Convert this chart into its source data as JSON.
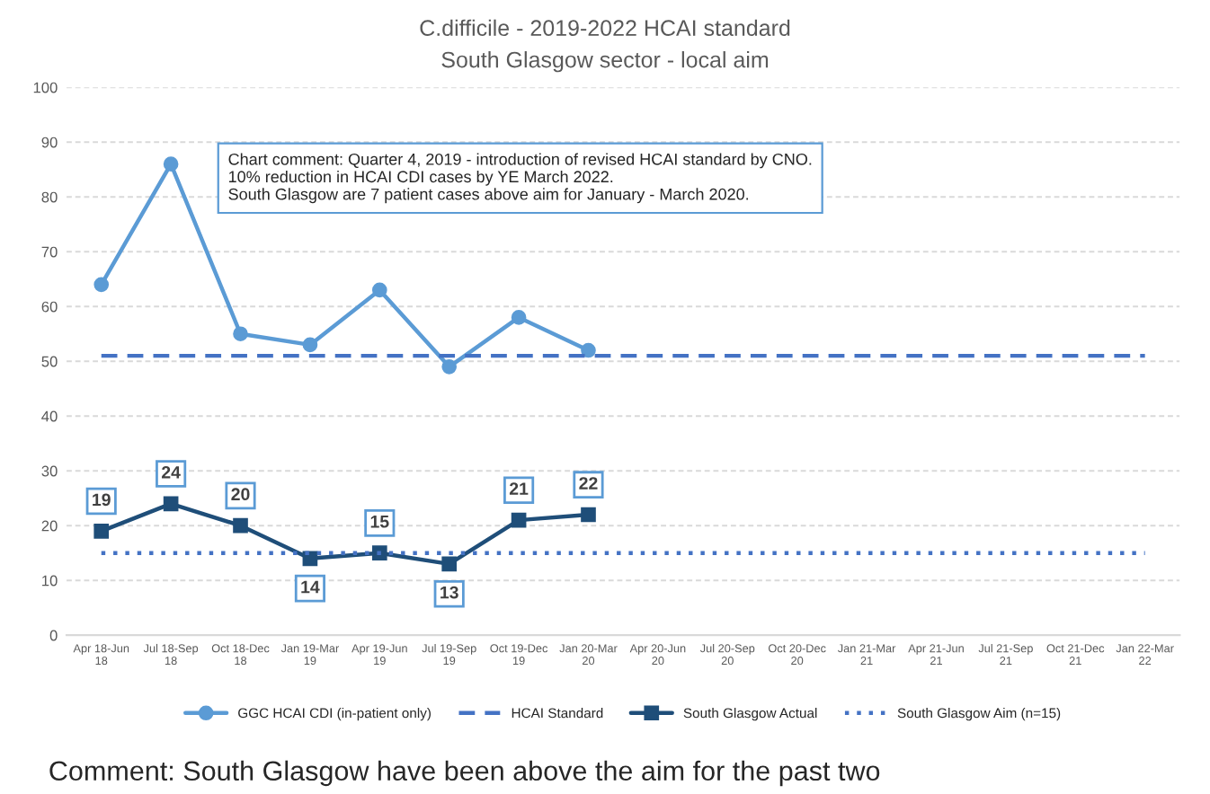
{
  "chart_data": {
    "type": "line",
    "title": "C.difficile - 2019-2022 HCAI standard",
    "subtitle": "South Glasgow sector - local aim",
    "categories": [
      "Apr 18-Jun 18",
      "Jul 18-Sep 18",
      "Oct 18-Dec 18",
      "Jan 19-Mar 19",
      "Apr 19-Jun 19",
      "Jul 19-Sep 19",
      "Oct 19-Dec 19",
      "Jan 20-Mar 20",
      "Apr 20-Jun 20",
      "Jul 20-Sep 20",
      "Oct 20-Dec 20",
      "Jan 21-Mar 21",
      "Apr 21-Jun 21",
      "Jul 21-Sep 21",
      "Oct 21-Dec 21",
      "Jan 22-Mar 22"
    ],
    "series": [
      {
        "name": "GGC HCAI CDI (in-patient only)",
        "color": "#5b9bd5",
        "marker": "circle",
        "line_style": "solid",
        "values": [
          64,
          86,
          55,
          53,
          63,
          49,
          58,
          52,
          null,
          null,
          null,
          null,
          null,
          null,
          null,
          null
        ]
      },
      {
        "name": "HCAI Standard",
        "color": "#4472c4",
        "marker": "none",
        "line_style": "dashed",
        "values": [
          51,
          51,
          51,
          51,
          51,
          51,
          51,
          51,
          51,
          51,
          51,
          51,
          51,
          51,
          51,
          51
        ]
      },
      {
        "name": "South Glasgow Actual",
        "color": "#1f4e79",
        "marker": "square",
        "line_style": "solid",
        "values": [
          19,
          24,
          20,
          14,
          15,
          13,
          21,
          22,
          null,
          null,
          null,
          null,
          null,
          null,
          null,
          null
        ],
        "value_labels": [
          "19",
          "24",
          "20",
          "14",
          "15",
          "13",
          "21",
          "22",
          null,
          null,
          null,
          null,
          null,
          null,
          null,
          null
        ]
      },
      {
        "name": "South Glasgow Aim (n=15)",
        "color": "#4472c4",
        "marker": "none",
        "line_style": "dotted",
        "values": [
          15,
          15,
          15,
          15,
          15,
          15,
          15,
          15,
          15,
          15,
          15,
          15,
          15,
          15,
          15,
          15
        ]
      }
    ],
    "ylim": [
      0,
      100
    ],
    "yticks": [
      0,
      10,
      20,
      30,
      40,
      50,
      60,
      70,
      80,
      90,
      100
    ],
    "grid": "y",
    "legend": "bottom",
    "annotations": [
      "Chart comment: Quarter 4, 2019 - introduction of revised HCAI standard by CNO.\n10% reduction in HCAI CDI cases by YE March 2022.\nSouth Glasgow are 7 patient cases above aim for January - March 2020.",
      "Comment: South Glasgow have been above the aim for the past two"
    ]
  }
}
